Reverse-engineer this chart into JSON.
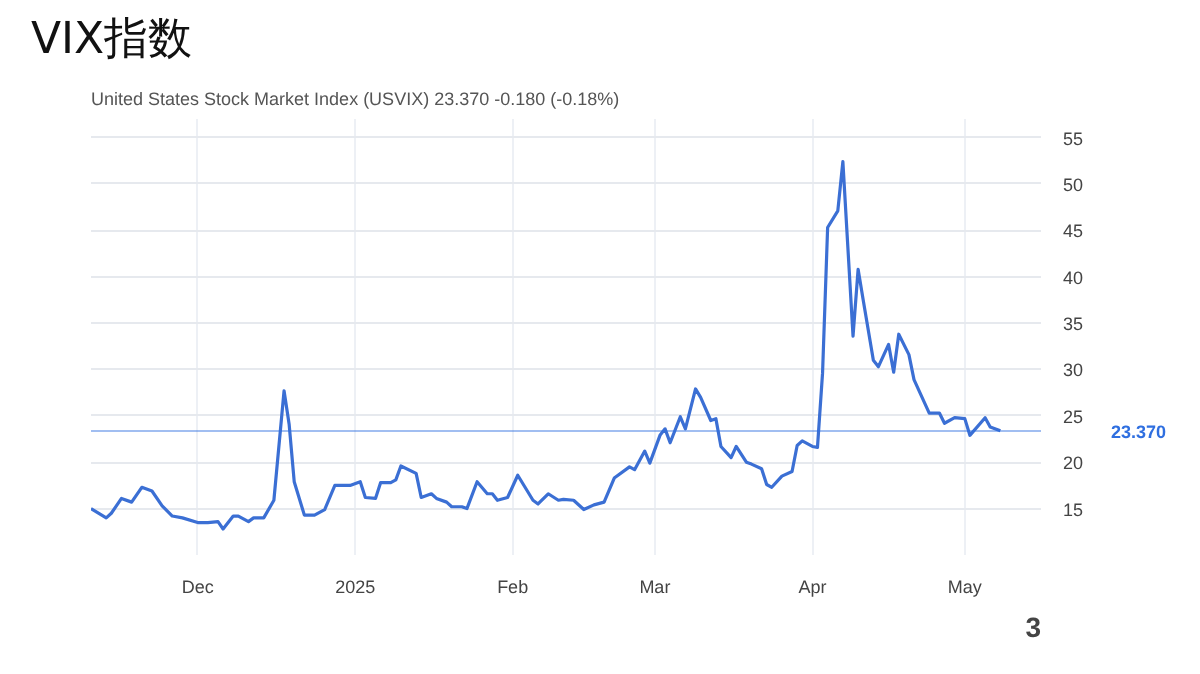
{
  "chart_data": {
    "type": "line",
    "title": "VIX指数",
    "subtitle": "United States Stock Market Index (USVIX) 23.370 -0.180 (-0.18%)",
    "x": [
      "2024-11-10",
      "2024-11-13",
      "2024-11-14",
      "2024-11-16",
      "2024-11-18",
      "2024-11-20",
      "2024-11-22",
      "2024-11-24",
      "2024-11-26",
      "2024-11-28",
      "2024-12-01",
      "2024-12-03",
      "2024-12-05",
      "2024-12-06",
      "2024-12-08",
      "2024-12-09",
      "2024-12-11",
      "2024-12-12",
      "2024-12-14",
      "2024-12-16",
      "2024-12-18",
      "2024-12-19",
      "2024-12-20",
      "2024-12-22",
      "2024-12-24",
      "2024-12-26",
      "2024-12-28",
      "2024-12-31",
      "2025-01-02",
      "2025-01-03",
      "2025-01-05",
      "2025-01-06",
      "2025-01-08",
      "2025-01-09",
      "2025-01-10",
      "2025-01-13",
      "2025-01-14",
      "2025-01-16",
      "2025-01-17",
      "2025-01-19",
      "2025-01-20",
      "2025-01-22",
      "2025-01-23",
      "2025-01-25",
      "2025-01-27",
      "2025-01-28",
      "2025-01-29",
      "2025-01-31",
      "2025-02-02",
      "2025-02-05",
      "2025-02-06",
      "2025-02-08",
      "2025-02-10",
      "2025-02-11",
      "2025-02-13",
      "2025-02-15",
      "2025-02-17",
      "2025-02-19",
      "2025-02-21",
      "2025-02-24",
      "2025-02-25",
      "2025-02-27",
      "2025-02-28",
      "2025-03-02",
      "2025-03-03",
      "2025-03-04",
      "2025-03-06",
      "2025-03-07",
      "2025-03-09",
      "2025-03-10",
      "2025-03-12",
      "2025-03-13",
      "2025-03-14",
      "2025-03-16",
      "2025-03-17",
      "2025-03-19",
      "2025-03-20",
      "2025-03-22",
      "2025-03-23",
      "2025-03-24",
      "2025-03-26",
      "2025-03-28",
      "2025-03-29",
      "2025-03-30",
      "2025-04-01",
      "2025-04-02",
      "2025-04-03",
      "2025-04-04",
      "2025-04-06",
      "2025-04-07",
      "2025-04-09",
      "2025-04-10",
      "2025-04-11",
      "2025-04-13",
      "2025-04-14",
      "2025-04-16",
      "2025-04-17",
      "2025-04-18",
      "2025-04-20",
      "2025-04-21",
      "2025-04-24",
      "2025-04-26",
      "2025-04-27",
      "2025-04-29",
      "2025-05-01",
      "2025-05-02",
      "2025-05-05",
      "2025-05-06",
      "2025-05-08"
    ],
    "series": [
      {
        "color": "#3b6fd4",
        "values": [
          15.0,
          14.0,
          14.5,
          16.1,
          15.7,
          17.3,
          16.9,
          15.3,
          14.2,
          14.0,
          13.5,
          13.5,
          13.6,
          12.8,
          14.2,
          14.2,
          13.6,
          14.0,
          14.0,
          15.9,
          27.7,
          24.1,
          17.9,
          14.3,
          14.3,
          14.9,
          17.5,
          17.5,
          17.9,
          16.2,
          16.1,
          17.8,
          17.8,
          18.1,
          19.6,
          18.8,
          16.2,
          16.6,
          16.1,
          15.7,
          15.2,
          15.2,
          15.0,
          17.9,
          16.6,
          16.6,
          15.9,
          16.2,
          18.6,
          15.9,
          15.5,
          16.6,
          15.9,
          16.0,
          15.9,
          14.9,
          15.4,
          15.7,
          18.3,
          19.5,
          19.2,
          21.2,
          19.9,
          22.9,
          23.6,
          22.1,
          24.9,
          23.6,
          27.9,
          27.0,
          24.5,
          24.7,
          21.7,
          20.5,
          21.7,
          20.0,
          19.8,
          19.3,
          17.6,
          17.3,
          18.5,
          19.0,
          21.8,
          22.3,
          21.7,
          21.6,
          29.6,
          45.3,
          47.1,
          52.4,
          33.6,
          40.8,
          37.5,
          31.0,
          30.3,
          32.7,
          29.7,
          33.8,
          31.6,
          28.9,
          25.3,
          25.3,
          24.2,
          24.8,
          24.7,
          22.9,
          24.8,
          23.8,
          23.4
        ]
      }
    ],
    "xlim": [
      "2024-11-10",
      "2025-05-16"
    ],
    "xticks": [
      {
        "value": "2024-12-01",
        "label": "Dec"
      },
      {
        "value": "2025-01-01",
        "label": "2025"
      },
      {
        "value": "2025-02-01",
        "label": "Feb"
      },
      {
        "value": "2025-03-01",
        "label": "Mar"
      },
      {
        "value": "2025-04-01",
        "label": "Apr"
      },
      {
        "value": "2025-05-01",
        "label": "May"
      }
    ],
    "ylim": [
      10,
      57
    ],
    "yticks": [
      15,
      20,
      25,
      30,
      35,
      40,
      45,
      50,
      55
    ],
    "ref_lines": [
      {
        "axis": "y",
        "value": 23.37,
        "label": "23.370",
        "color": "#2f6fe0"
      }
    ],
    "grid": true,
    "annotations": [
      "3"
    ]
  }
}
